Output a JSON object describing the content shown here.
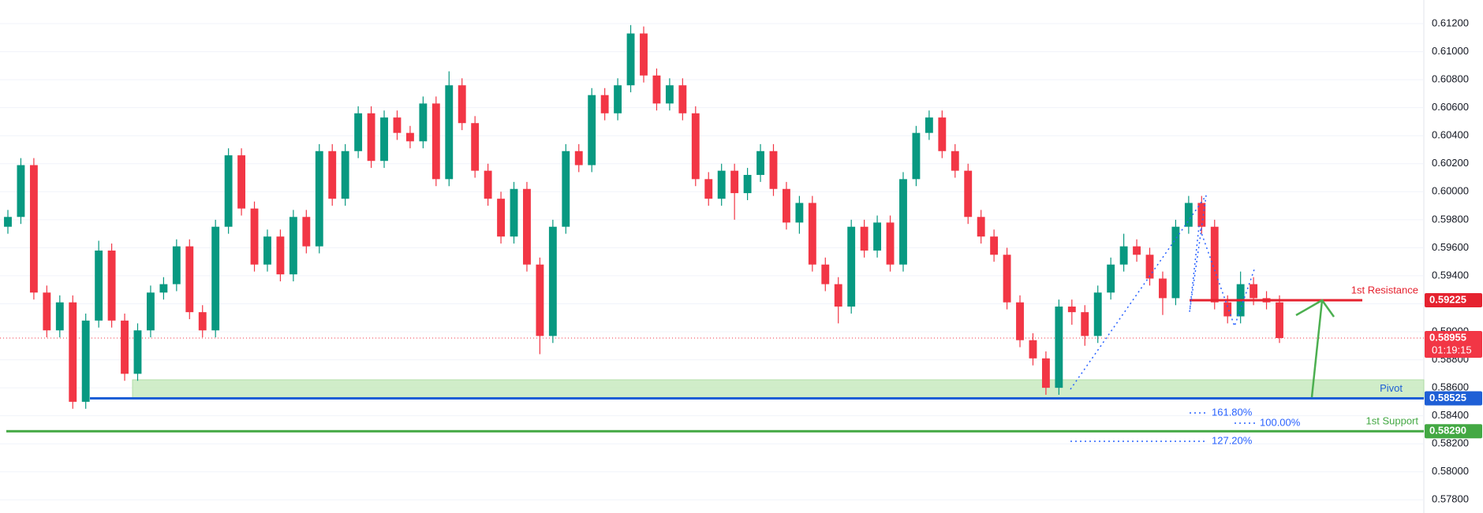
{
  "chart_data": {
    "type": "candlestick",
    "ylim": [
      0.57706,
      0.61369
    ],
    "yticks": [
      {
        "value": 0.578,
        "label": "0.57800"
      },
      {
        "value": 0.58,
        "label": "0.58000"
      },
      {
        "value": 0.582,
        "label": "0.58200"
      },
      {
        "value": 0.584,
        "label": "0.58400"
      },
      {
        "value": 0.586,
        "label": "0.58600"
      },
      {
        "value": 0.588,
        "label": "0.58800"
      },
      {
        "value": 0.59,
        "label": "0.59000"
      },
      {
        "value": 0.592,
        "label": "0.59200"
      },
      {
        "value": 0.594,
        "label": "0.59400"
      },
      {
        "value": 0.596,
        "label": "0.59600"
      },
      {
        "value": 0.598,
        "label": "0.59800"
      },
      {
        "value": 0.6,
        "label": "0.60000"
      },
      {
        "value": 0.602,
        "label": "0.60200"
      },
      {
        "value": 0.604,
        "label": "0.60400"
      },
      {
        "value": 0.606,
        "label": "0.60600"
      },
      {
        "value": 0.608,
        "label": "0.60800"
      },
      {
        "value": 0.61,
        "label": "0.61000"
      },
      {
        "value": 0.612,
        "label": "0.61200"
      }
    ],
    "grid": true,
    "up_color": "#089981",
    "down_color": "#f23645",
    "candles": [
      [
        0.5975,
        0.5987,
        0.597,
        0.5982
      ],
      [
        0.5982,
        0.6024,
        0.5977,
        0.6019
      ],
      [
        0.6019,
        0.6024,
        0.5923,
        0.5928
      ],
      [
        0.5928,
        0.5933,
        0.5896,
        0.5901
      ],
      [
        0.5901,
        0.5926,
        0.5896,
        0.5921
      ],
      [
        0.5921,
        0.5926,
        0.5845,
        0.585
      ],
      [
        0.585,
        0.5913,
        0.5845,
        0.5908
      ],
      [
        0.5908,
        0.5965,
        0.5903,
        0.5958
      ],
      [
        0.5958,
        0.5963,
        0.5903,
        0.5908
      ],
      [
        0.5908,
        0.5913,
        0.5865,
        0.587
      ],
      [
        0.587,
        0.5906,
        0.5865,
        0.5901
      ],
      [
        0.5901,
        0.5933,
        0.5896,
        0.5928
      ],
      [
        0.5928,
        0.5939,
        0.5923,
        0.5934
      ],
      [
        0.5934,
        0.5966,
        0.5929,
        0.5961
      ],
      [
        0.5961,
        0.5966,
        0.5909,
        0.5914
      ],
      [
        0.5914,
        0.5919,
        0.5896,
        0.5901
      ],
      [
        0.5901,
        0.598,
        0.5896,
        0.5975
      ],
      [
        0.5975,
        0.6031,
        0.597,
        0.6026
      ],
      [
        0.6026,
        0.6031,
        0.5983,
        0.5988
      ],
      [
        0.5988,
        0.5993,
        0.5943,
        0.5948
      ],
      [
        0.5948,
        0.5973,
        0.5943,
        0.5968
      ],
      [
        0.5968,
        0.5973,
        0.5936,
        0.5941
      ],
      [
        0.5941,
        0.5987,
        0.5936,
        0.5982
      ],
      [
        0.5982,
        0.5987,
        0.5956,
        0.5961
      ],
      [
        0.5961,
        0.6034,
        0.5956,
        0.6029
      ],
      [
        0.6029,
        0.6034,
        0.599,
        0.5995
      ],
      [
        0.5995,
        0.6034,
        0.599,
        0.6029
      ],
      [
        0.6029,
        0.6061,
        0.6024,
        0.6056
      ],
      [
        0.6056,
        0.6061,
        0.6017,
        0.6022
      ],
      [
        0.6022,
        0.6058,
        0.6017,
        0.6053
      ],
      [
        0.6053,
        0.6058,
        0.6037,
        0.6042
      ],
      [
        0.6042,
        0.6047,
        0.6031,
        0.6036
      ],
      [
        0.6036,
        0.6068,
        0.6031,
        0.6063
      ],
      [
        0.6063,
        0.6068,
        0.6004,
        0.6009
      ],
      [
        0.6009,
        0.6086,
        0.6004,
        0.6076
      ],
      [
        0.6076,
        0.6081,
        0.6044,
        0.6049
      ],
      [
        0.6049,
        0.6054,
        0.601,
        0.6015
      ],
      [
        0.6015,
        0.602,
        0.599,
        0.5995
      ],
      [
        0.5995,
        0.6,
        0.5963,
        0.5968
      ],
      [
        0.5968,
        0.6007,
        0.5963,
        0.6002
      ],
      [
        0.6002,
        0.6007,
        0.5943,
        0.5948
      ],
      [
        0.5948,
        0.5953,
        0.5884,
        0.5897
      ],
      [
        0.5897,
        0.598,
        0.5892,
        0.5975
      ],
      [
        0.5975,
        0.6034,
        0.597,
        0.6029
      ],
      [
        0.6029,
        0.6034,
        0.6014,
        0.6019
      ],
      [
        0.6019,
        0.6074,
        0.6014,
        0.6069
      ],
      [
        0.6069,
        0.6074,
        0.6051,
        0.6056
      ],
      [
        0.6056,
        0.6081,
        0.6051,
        0.6076
      ],
      [
        0.6076,
        0.6119,
        0.6071,
        0.6113
      ],
      [
        0.6113,
        0.6118,
        0.6078,
        0.6083
      ],
      [
        0.6083,
        0.6088,
        0.6058,
        0.6063
      ],
      [
        0.6063,
        0.6081,
        0.6058,
        0.6076
      ],
      [
        0.6076,
        0.6081,
        0.6051,
        0.6056
      ],
      [
        0.6056,
        0.6061,
        0.6004,
        0.6009
      ],
      [
        0.6009,
        0.6014,
        0.599,
        0.5995
      ],
      [
        0.5995,
        0.602,
        0.599,
        0.6015
      ],
      [
        0.6015,
        0.602,
        0.598,
        0.5999
      ],
      [
        0.5999,
        0.6017,
        0.5994,
        0.6012
      ],
      [
        0.6012,
        0.6034,
        0.6007,
        0.6029
      ],
      [
        0.6029,
        0.6034,
        0.5997,
        0.6002
      ],
      [
        0.6002,
        0.6007,
        0.5973,
        0.5978
      ],
      [
        0.5978,
        0.5997,
        0.597,
        0.5992
      ],
      [
        0.5992,
        0.5997,
        0.5943,
        0.5948
      ],
      [
        0.5948,
        0.5953,
        0.5929,
        0.5934
      ],
      [
        0.5934,
        0.5939,
        0.5906,
        0.5918
      ],
      [
        0.5918,
        0.598,
        0.5913,
        0.5975
      ],
      [
        0.5975,
        0.598,
        0.5953,
        0.5958
      ],
      [
        0.5958,
        0.5983,
        0.5953,
        0.5978
      ],
      [
        0.5978,
        0.5983,
        0.5943,
        0.5948
      ],
      [
        0.5948,
        0.6014,
        0.5943,
        0.6009
      ],
      [
        0.6009,
        0.6047,
        0.6004,
        0.6042
      ],
      [
        0.6042,
        0.6058,
        0.6037,
        0.6053
      ],
      [
        0.6053,
        0.6058,
        0.6024,
        0.6029
      ],
      [
        0.6029,
        0.6034,
        0.601,
        0.6015
      ],
      [
        0.6015,
        0.602,
        0.5977,
        0.5982
      ],
      [
        0.5982,
        0.5987,
        0.5963,
        0.5968
      ],
      [
        0.5968,
        0.5973,
        0.595,
        0.5955
      ],
      [
        0.5955,
        0.596,
        0.5916,
        0.5921
      ],
      [
        0.5921,
        0.5926,
        0.5889,
        0.5894
      ],
      [
        0.5894,
        0.5899,
        0.5876,
        0.5881
      ],
      [
        0.5881,
        0.5886,
        0.5855,
        0.586
      ],
      [
        0.586,
        0.5923,
        0.5855,
        0.5918
      ],
      [
        0.5918,
        0.5923,
        0.5905,
        0.5914
      ],
      [
        0.5914,
        0.5919,
        0.589,
        0.5897
      ],
      [
        0.5897,
        0.5933,
        0.5892,
        0.5928
      ],
      [
        0.5928,
        0.5953,
        0.5923,
        0.5948
      ],
      [
        0.5948,
        0.597,
        0.5943,
        0.5961
      ],
      [
        0.5961,
        0.5966,
        0.595,
        0.5955
      ],
      [
        0.5955,
        0.596,
        0.5933,
        0.5938
      ],
      [
        0.5938,
        0.5943,
        0.5912,
        0.5924
      ],
      [
        0.5924,
        0.598,
        0.5919,
        0.5975
      ],
      [
        0.5975,
        0.5997,
        0.597,
        0.5992
      ],
      [
        0.5992,
        0.5997,
        0.597,
        0.5975
      ],
      [
        0.5975,
        0.598,
        0.5916,
        0.5921
      ],
      [
        0.5921,
        0.5926,
        0.5906,
        0.5911
      ],
      [
        0.5911,
        0.5943,
        0.5906,
        0.5934
      ],
      [
        0.5934,
        0.5939,
        0.5919,
        0.5924
      ],
      [
        0.5924,
        0.5929,
        0.5916,
        0.5921
      ],
      [
        0.5921,
        0.5926,
        0.5892,
        0.58955
      ]
    ],
    "current_price": {
      "value": 0.58955,
      "label": "0.58955",
      "countdown": "01:19:15",
      "color": "#f23645"
    },
    "zone": [
      0.58525,
      0.58657
    ],
    "zone_color": "#c8ebc0",
    "levels": [
      {
        "name": "1st Resistance",
        "value": 0.59225,
        "label": "0.59225",
        "color": "#e5222f"
      },
      {
        "name": "Pivot",
        "value": 0.58525,
        "label": "0.58525",
        "color": "#1e5fd6"
      },
      {
        "name": "1st Support",
        "value": 0.5829,
        "label": "0.58290",
        "color": "#43a843"
      }
    ],
    "fib_labels": [
      "161.80%",
      "100.00%",
      "127.20%"
    ]
  }
}
